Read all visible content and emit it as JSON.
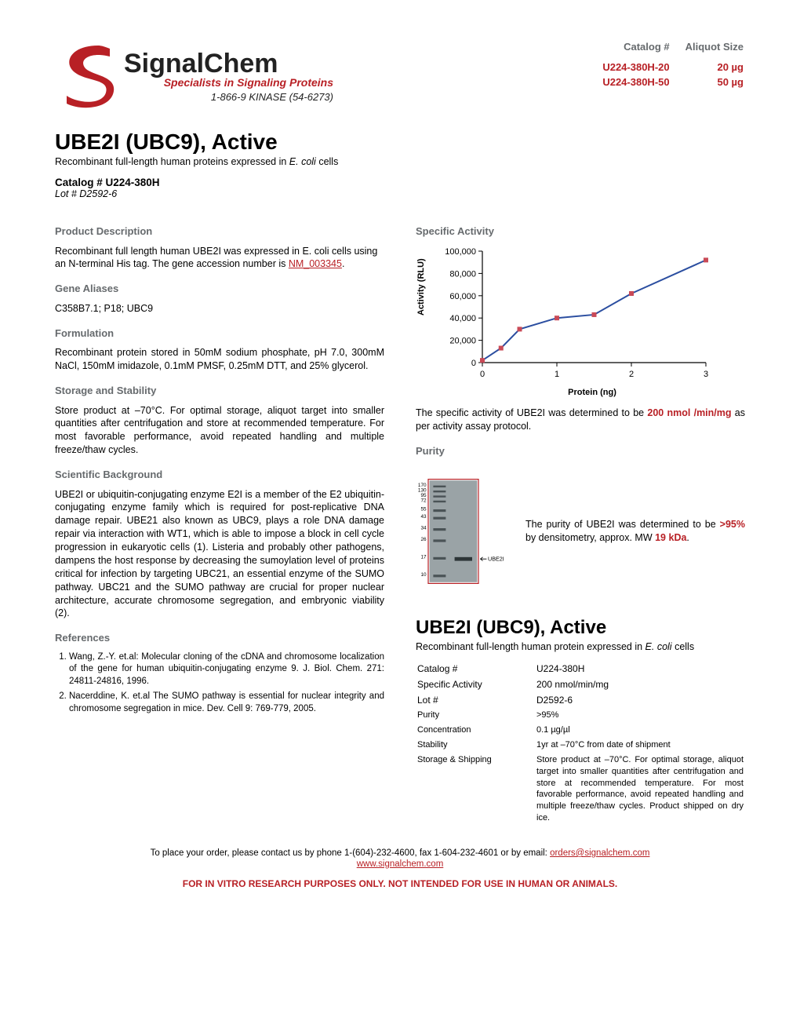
{
  "logo": {
    "company": "SignalChem",
    "tagline": "Specialists in Signaling Proteins",
    "phone": "1-866-9 KINASE (54-6273)",
    "s_color": "#b82025",
    "text_color": "#222222",
    "tagline_color": "#b82025"
  },
  "catalog_header": {
    "col1": "Catalog #",
    "col2": "Aliquot Size"
  },
  "catalog_rows": [
    {
      "num": "U224-380H-20",
      "size": "20 µg"
    },
    {
      "num": "U224-380H-50",
      "size": "50 µg"
    }
  ],
  "title": "UBE2I (UBC9), Active",
  "subtitle_pre": "Recombinant full-length ",
  "subtitle_mid": "human",
  "subtitle_post": " proteins expressed in ",
  "subtitle_species": "E. coli",
  "subtitle_end": " cells",
  "catalog_line": "Catalog # U224-380H",
  "lot_line": "Lot # D2592-6",
  "left": {
    "desc_h": "Product Description",
    "desc_1": "Recombinant full length human UBE2I was expressed in E. coli cells using an N-terminal His tag. The gene accession number is ",
    "desc_link": "NM_003345",
    "aliases_h": "Gene Aliases",
    "aliases": "C358B7.1; P18; UBC9",
    "form_h": "Formulation",
    "form": "Recombinant protein stored in 50mM sodium phosphate, pH 7.0, 300mM NaCl, 150mM imidazole, 0.1mM PMSF, 0.25mM DTT, and 25% glycerol.",
    "store_h": "Storage and Stability",
    "store": "Store product at –70°C. For optimal storage, aliquot target into smaller quantities after centrifugation and store at recommended temperature. For most favorable performance, avoid repeated handling and multiple freeze/thaw cycles.",
    "sci_h": "Scientific Background",
    "sci": "UBE2I or ubiquitin-conjugating enzyme E2I is a member of the E2 ubiquitin-conjugating enzyme family which is required for post-replicative DNA damage repair. UBE21 also known as UBC9, plays a role DNA damage repair via interaction with WT1, which is able to impose a block in cell cycle progression in eukaryotic cells (1). Listeria and probably other pathogens, dampens the host response by decreasing the sumoylation level of proteins critical for infection by targeting UBC21, an essential enzyme of the SUMO pathway. UBC21 and the SUMO pathway are crucial for proper nuclear architecture, accurate chromosome segregation, and embryonic viability (2).",
    "ref_h": "References",
    "refs": [
      "Wang, Z.-Y. et.al: Molecular cloning of the cDNA and chromosome localization of the gene for human ubiquitin-conjugating enzyme 9. J. Biol. Chem. 271: 24811-24816, 1996.",
      "Nacerddine, K. et.al The SUMO pathway is essential for nuclear integrity and chromosome segregation in mice. Dev. Cell 9: 769-779, 2005."
    ]
  },
  "right": {
    "act_h": "Specific Activity",
    "chart": {
      "type": "line",
      "ylabel": "Activity (RLU)",
      "xlabel": "Protein (ng)",
      "yticks": [
        0,
        20000,
        40000,
        60000,
        80000,
        100000
      ],
      "ytick_labels": [
        "0",
        "20,000",
        "40,000",
        "60,000",
        "80,000",
        "100,000"
      ],
      "xticks": [
        0,
        1,
        2,
        3
      ],
      "points": [
        [
          0,
          2000
        ],
        [
          0.25,
          13000
        ],
        [
          0.5,
          30000
        ],
        [
          1,
          40000
        ],
        [
          1.5,
          43000
        ],
        [
          2,
          62000
        ],
        [
          3,
          92000
        ]
      ],
      "line_color": "#2b4ea0",
      "marker_color": "#c94a57",
      "marker_size": 3,
      "background": "#ffffff",
      "axis_color": "#000000",
      "tick_font": 11
    },
    "act_text_1": "The specific activity of UBE2I was determined to be ",
    "act_val": "200 nmol /min/mg",
    "act_text_2": " as per activity assay protocol.",
    "pur_h": "Purity",
    "gel": {
      "border_color": "#b82025",
      "lane_bg": "#9aa3a6",
      "ladder_labels": [
        "170",
        "130",
        "95",
        "72",
        "55",
        "43",
        "34",
        "26",
        "17",
        "10"
      ],
      "ladder_y": [
        10,
        18,
        26,
        34,
        48,
        60,
        78,
        96,
        124,
        152
      ],
      "ladder_band_y": [
        12,
        20,
        28,
        36,
        50,
        62,
        80,
        98,
        126,
        154
      ],
      "band_y": 126,
      "band_label": "UBE2I"
    },
    "pur_text_1": "The purity of UBE2I was determined to be ",
    "pur_val": ">95%",
    "pur_text_2": " by densitometry, approx. MW ",
    "pur_mw": "19 kDa",
    "r_title": "UBE2I (UBC9), Active",
    "r_sub_pre": "Recombinant full-length ",
    "r_sub_mid": "human",
    "r_sub_post": " protein expressed in ",
    "r_sub_species": "E. coli",
    "r_sub_end": " cells",
    "spec": [
      [
        "Catalog #",
        "U224-380H"
      ],
      [
        "Specific Activity",
        "200 nmol/min/mg"
      ],
      [
        "Lot #",
        "D2592-6"
      ],
      [
        "Purity",
        ">95%"
      ],
      [
        "Concentration",
        "0.1 µg/µl"
      ],
      [
        "Stability",
        "1yr at –70°C from date of shipment"
      ],
      [
        "Storage & Shipping",
        "Store product at –70°C. For optimal storage, aliquot target into smaller quantities after centrifugation and store at recommended temperature. For most favorable performance, avoid repeated handling and multiple freeze/thaw cycles. Product shipped on dry ice."
      ]
    ]
  },
  "footer": {
    "line1_a": "To place your order, please contact us by phone 1-(604)-232-4600, fax 1-604-232-4601 or by email: ",
    "email": "orders@signalchem.com",
    "url": "www.signalchem.com",
    "disclaimer": "FOR IN VITRO RESEARCH PURPOSES ONLY. NOT INTENDED FOR USE IN HUMAN OR ANIMALS."
  }
}
